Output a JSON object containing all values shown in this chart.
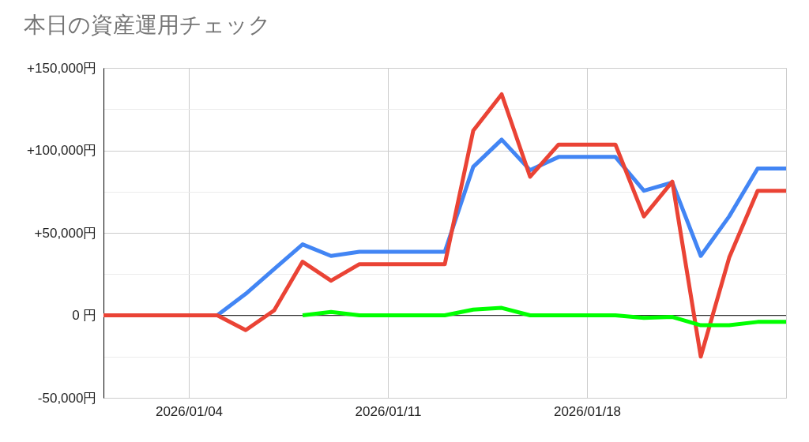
{
  "chart_data": {
    "type": "line",
    "title": "本日の資産運用チェック",
    "x": [
      "2026-01-01",
      "2026-01-02",
      "2026-01-03",
      "2026-01-04",
      "2026-01-05",
      "2026-01-06",
      "2026-01-07",
      "2026-01-08",
      "2026-01-09",
      "2026-01-10",
      "2026-01-11",
      "2026-01-12",
      "2026-01-13",
      "2026-01-14",
      "2026-01-15",
      "2026-01-16",
      "2026-01-17",
      "2026-01-18",
      "2026-01-19",
      "2026-01-20",
      "2026-01-21",
      "2026-01-22",
      "2026-01-23",
      "2026-01-24",
      "2026-01-25"
    ],
    "xlim": [
      "2026-01-01",
      "2026-01-25"
    ],
    "xticks": [
      {
        "value": "2026-01-04",
        "label": "2026/01/04"
      },
      {
        "value": "2026-01-11",
        "label": "2026/01/11"
      },
      {
        "value": "2026-01-18",
        "label": "2026/01/18"
      }
    ],
    "ylim": [
      -50000,
      150000
    ],
    "yticks": [
      {
        "value": -50000,
        "label": "-50,000円"
      },
      {
        "value": -25000,
        "label": null
      },
      {
        "value": 0,
        "label": "0 円"
      },
      {
        "value": 25000,
        "label": null
      },
      {
        "value": 50000,
        "label": "+50,000円"
      },
      {
        "value": 75000,
        "label": null
      },
      {
        "value": 100000,
        "label": "+100,000円"
      },
      {
        "value": 125000,
        "label": null
      },
      {
        "value": 150000,
        "label": "+150,000円"
      }
    ],
    "series": [
      {
        "color": "#4285f4",
        "values": [
          null,
          null,
          null,
          null,
          0,
          13000,
          28000,
          43000,
          36000,
          38500,
          38500,
          38500,
          38500,
          90000,
          106500,
          88000,
          96000,
          96000,
          96000,
          75500,
          80500,
          36000,
          60000,
          89000,
          89000
        ]
      },
      {
        "color": "#ea4335",
        "values": [
          0,
          0,
          0,
          0,
          0,
          -9000,
          3000,
          32500,
          21000,
          31000,
          31000,
          31000,
          31000,
          112000,
          134000,
          84000,
          103500,
          103500,
          103500,
          60000,
          81000,
          -25000,
          35000,
          75500,
          75500
        ]
      },
      {
        "color": "#00ff00",
        "values": [
          null,
          null,
          null,
          null,
          null,
          null,
          null,
          0,
          2000,
          0,
          0,
          0,
          0,
          3500,
          4500,
          0,
          0,
          0,
          0,
          -1500,
          -1000,
          -6000,
          -6000,
          -4000,
          -4000
        ]
      }
    ],
    "ref_lines": [
      {
        "axis": "y",
        "value": 0,
        "color": "#333333"
      }
    ],
    "grid": true
  }
}
